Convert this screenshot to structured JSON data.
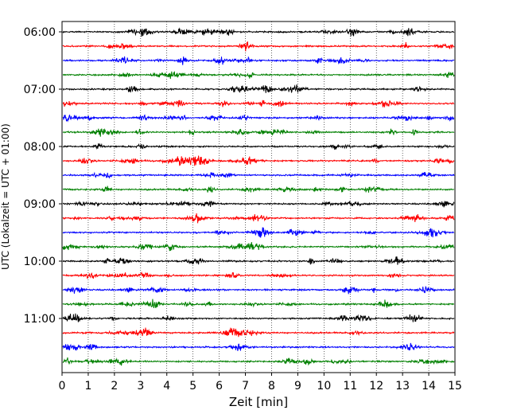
{
  "chart_data": {
    "type": "line",
    "title": "",
    "xlabel": "Zeit  [min]",
    "ylabel": "UTC (Lokalzeit = UTC + 01:00)",
    "xlim": [
      0,
      15
    ],
    "x_ticks": [
      "0",
      "1",
      "2",
      "3",
      "4",
      "5",
      "6",
      "7",
      "8",
      "9",
      "10",
      "11",
      "12",
      "13",
      "14",
      "15"
    ],
    "y_ticks": [
      "06:00",
      "07:00",
      "08:00",
      "09:00",
      "10:00",
      "11:00"
    ],
    "grid": "vertical dotted at each minute",
    "trace_interval_minutes": 15,
    "first_trace": "06:00",
    "trace_count": 24,
    "trace_colors": [
      "#000000",
      "#ff0000",
      "#0000ff",
      "#008000"
    ]
  }
}
